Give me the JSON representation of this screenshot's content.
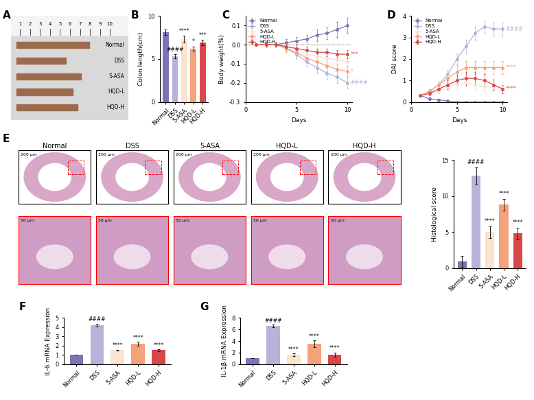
{
  "panel_labels": [
    "A",
    "B",
    "C",
    "D",
    "E",
    "F",
    "G"
  ],
  "photo": {
    "ruler": [
      1,
      2,
      3,
      4,
      5,
      6,
      7,
      8,
      9,
      10
    ],
    "labels": [
      "Normal",
      "DSS",
      "5-ASA",
      "HQD-L",
      "HQD-H"
    ]
  },
  "histology": {
    "groups": [
      "Normal",
      "DSS",
      "5-ASA",
      "HQD-L",
      "HQD-H"
    ],
    "scale_bars": [
      "200 μm",
      "50 μm"
    ]
  },
  "chart_data": [
    {
      "type": "bar",
      "ylabel": "Colon length(cm)",
      "categories": [
        "Normal",
        "DSS",
        "5-ASA",
        "HQD-L",
        "HQD-H"
      ],
      "values": [
        8.1,
        5.3,
        7.3,
        6.2,
        6.9
      ],
      "errors": [
        0.3,
        0.25,
        0.4,
        0.25,
        0.3
      ],
      "significance": [
        null,
        "####",
        "****",
        "*",
        "***"
      ],
      "colors": [
        "#7B74B5",
        "#B8B2D9",
        "#FBE3CE",
        "#F3A27C",
        "#D8474B"
      ],
      "ylim": [
        0,
        10
      ],
      "yticks": [
        0,
        5,
        10
      ]
    },
    {
      "type": "line",
      "xlabel": "Days",
      "ylabel": "Body weight(%)",
      "x": [
        1,
        2,
        3,
        4,
        5,
        6,
        7,
        8,
        9,
        10
      ],
      "xlim": [
        0,
        10.5
      ],
      "xticks": [
        0,
        5,
        10
      ],
      "ylim": [
        -0.3,
        0.15
      ],
      "yticks": [
        {
          "value": -0.3,
          "label": "-0.3"
        },
        {
          "value": -0.2,
          "label": "-0.2"
        },
        {
          "value": -0.1,
          "label": "-0.1"
        },
        {
          "value": 0,
          "label": "0.0"
        },
        {
          "value": 0.1,
          "label": "0.1"
        }
      ],
      "legend": "upper left",
      "marker": "o",
      "line_style": "solid",
      "series": [
        {
          "name": "Normal",
          "color": "#7B74B5",
          "values": [
            0,
            0,
            0,
            0.01,
            0.02,
            0.03,
            0.05,
            0.06,
            0.08,
            0.1
          ],
          "errors": [
            0,
            0.01,
            0.01,
            0.02,
            0.02,
            0.02,
            0.03,
            0.03,
            0.04,
            0.04
          ],
          "significance": null
        },
        {
          "name": "DSS",
          "color": "#B8B2D9",
          "values": [
            0,
            0,
            0,
            -0.02,
            -0.05,
            -0.09,
            -0.12,
            -0.15,
            -0.17,
            -0.2
          ],
          "errors": [
            0,
            0.01,
            0.01,
            0.02,
            0.02,
            0.02,
            0.03,
            0.03,
            0.03,
            0.03
          ],
          "significance": "####"
        },
        {
          "name": "5-ASA",
          "color": "#FBE3CE",
          "values": [
            0,
            0,
            0,
            -0.01,
            -0.03,
            -0.05,
            -0.06,
            -0.07,
            -0.08,
            -0.09
          ],
          "errors": [
            0,
            0.01,
            0.01,
            0.01,
            0.02,
            0.02,
            0.02,
            0.02,
            0.02,
            0.02
          ],
          "significance": null
        },
        {
          "name": "HQD-L",
          "color": "#F3A27C",
          "values": [
            0,
            0,
            0,
            -0.02,
            -0.04,
            -0.07,
            -0.09,
            -0.11,
            -0.13,
            -0.14
          ],
          "errors": [
            0,
            0.01,
            0.01,
            0.02,
            0.02,
            0.02,
            0.03,
            0.03,
            0.03,
            0.03
          ],
          "significance": "*"
        },
        {
          "name": "HQD-H",
          "color": "#D8474B",
          "values": [
            0,
            0,
            0,
            -0.01,
            -0.02,
            -0.03,
            -0.04,
            -0.04,
            -0.05,
            -0.05
          ],
          "errors": [
            0,
            0.01,
            0.01,
            0.01,
            0.02,
            0.02,
            0.02,
            0.02,
            0.02,
            0.02
          ],
          "significance": "***"
        }
      ]
    },
    {
      "type": "line",
      "xlabel": "Days",
      "ylabel": "DAI score",
      "x": [
        1,
        2,
        3,
        4,
        5,
        6,
        7,
        8,
        9,
        10
      ],
      "xlim": [
        0,
        10.5
      ],
      "xticks": [
        0,
        5,
        10
      ],
      "ylim": [
        0,
        4
      ],
      "yticks": [
        0,
        1,
        2,
        3,
        4
      ],
      "legend": "upper left",
      "marker": "o",
      "line_style": "solid",
      "series": [
        {
          "name": "Normal",
          "color": "#7B74B5",
          "values": [
            0.3,
            0.15,
            0.1,
            0.05,
            0,
            0,
            0,
            0,
            0,
            0
          ],
          "errors": [
            0.05,
            0.05,
            0.05,
            0.05,
            0,
            0,
            0,
            0,
            0,
            0
          ],
          "significance": null
        },
        {
          "name": "DSS",
          "color": "#B8B2D9",
          "values": [
            0.3,
            0.5,
            0.8,
            1.3,
            2.0,
            2.6,
            3.2,
            3.5,
            3.4,
            3.4
          ],
          "errors": [
            0.05,
            0.1,
            0.15,
            0.2,
            0.25,
            0.3,
            0.3,
            0.3,
            0.3,
            0.3
          ],
          "significance": "####"
        },
        {
          "name": "5-ASA",
          "color": "#FBE3CE",
          "values": [
            0.3,
            0.4,
            0.5,
            0.7,
            0.8,
            0.9,
            0.8,
            0.7,
            0.7,
            0.7
          ],
          "errors": [
            0.05,
            0.1,
            0.1,
            0.15,
            0.2,
            0.2,
            0.2,
            0.2,
            0.2,
            0.2
          ],
          "significance": null
        },
        {
          "name": "HQD-L",
          "color": "#F3A27C",
          "values": [
            0.3,
            0.5,
            0.8,
            1.1,
            1.4,
            1.6,
            1.6,
            1.6,
            1.6,
            1.6
          ],
          "errors": [
            0.05,
            0.1,
            0.15,
            0.2,
            0.3,
            0.3,
            0.3,
            0.3,
            0.3,
            0.3
          ],
          "significance": "****"
        },
        {
          "name": "HQD-H",
          "color": "#D8474B",
          "values": [
            0.3,
            0.4,
            0.6,
            0.8,
            1.0,
            1.1,
            1.1,
            1.0,
            0.8,
            0.6
          ],
          "errors": [
            0.05,
            0.1,
            0.15,
            0.2,
            0.25,
            0.3,
            0.3,
            0.3,
            0.25,
            0.2
          ],
          "significance": "****"
        }
      ]
    },
    {
      "type": "bar",
      "ylabel": "Histological score",
      "categories": [
        "Normal",
        "DSS",
        "5-ASA",
        "HQD-L",
        "HQD-H"
      ],
      "values": [
        0.9,
        12.8,
        5.0,
        8.8,
        4.8
      ],
      "errors": [
        0.8,
        1.2,
        0.8,
        0.8,
        0.8
      ],
      "significance": [
        null,
        "####",
        "****",
        "****",
        "****"
      ],
      "colors": [
        "#7B74B5",
        "#B8B2D9",
        "#FBE3CE",
        "#F3A27C",
        "#D8474B"
      ],
      "ylim": [
        0,
        15
      ],
      "yticks": [
        0,
        5,
        10,
        15
      ]
    },
    {
      "type": "bar",
      "ylabel": "IL-6 mRNA Expression",
      "categories": [
        "Normal",
        "DSS",
        "5-ASA",
        "HQD-L",
        "HQD-H"
      ],
      "values": [
        1,
        4.25,
        1.5,
        2.2,
        1.5
      ],
      "errors": [
        0,
        0.15,
        0.05,
        0.2,
        0.1
      ],
      "significance": [
        null,
        "####",
        "****",
        "****",
        "****"
      ],
      "colors": [
        "#7B74B5",
        "#B8B2D9",
        "#FBE3CE",
        "#F3A27C",
        "#D8474B"
      ],
      "ylim": [
        0,
        5
      ],
      "yticks": [
        0,
        1,
        2,
        3,
        4,
        5
      ]
    },
    {
      "type": "bar",
      "ylabel": "IL-1β mRNA Expression",
      "categories": [
        "Normal",
        "DSS",
        "5-ASA",
        "HQD-L",
        "HQD-H"
      ],
      "values": [
        1,
        6.6,
        1.6,
        3.5,
        1.6
      ],
      "errors": [
        0,
        0.25,
        0.2,
        0.6,
        0.4
      ],
      "significance": [
        null,
        "####",
        "****",
        "****",
        "****"
      ],
      "colors": [
        "#7B74B5",
        "#B8B2D9",
        "#FBE3CE",
        "#F3A27C",
        "#D8474B"
      ],
      "ylim": [
        0,
        8
      ],
      "yticks": [
        0,
        2,
        4,
        6,
        8
      ]
    }
  ]
}
